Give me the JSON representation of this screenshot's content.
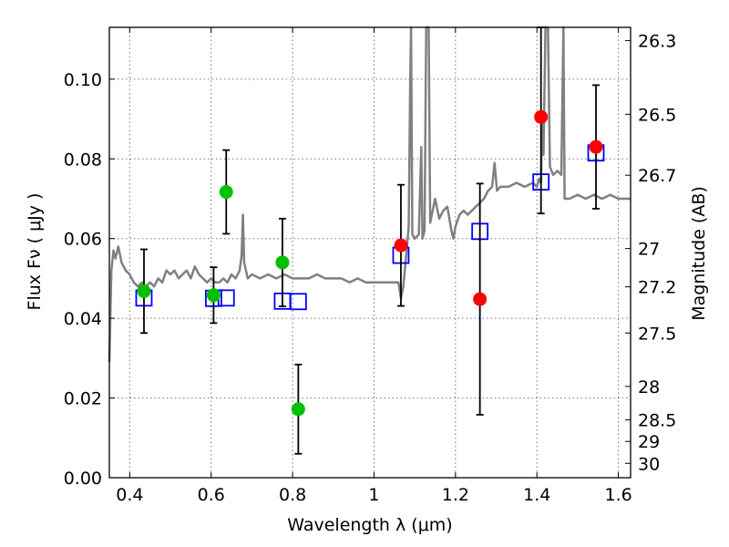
{
  "chart_data": {
    "type": "scatter",
    "xlabel": "Wavelength  λ (μm)",
    "ylabel": "Flux  Fν ( μJy )",
    "ylabel_right": "Magnitude (AB)",
    "xlim": [
      0.35,
      1.63
    ],
    "ylim": [
      0.0,
      0.113
    ],
    "grid": true,
    "x_ticks": [
      "0.4",
      "0.6",
      "0.8",
      "1",
      "1.2",
      "1.4",
      "1.6"
    ],
    "x_tick_values": [
      0.4,
      0.6,
      0.8,
      1.0,
      1.2,
      1.4,
      1.6
    ],
    "y_ticks": [
      "0.00",
      "0.02",
      "0.04",
      "0.06",
      "0.08",
      "0.10"
    ],
    "y_tick_values": [
      0.0,
      0.02,
      0.04,
      0.06,
      0.08,
      0.1
    ],
    "mag_ticks": [
      {
        "label": "26.3",
        "flux": 0.1097
      },
      {
        "label": "26.5",
        "flux": 0.0912
      },
      {
        "label": "26.7",
        "flux": 0.0759
      },
      {
        "label": "27",
        "flux": 0.0575
      },
      {
        "label": "27.2",
        "flux": 0.0479
      },
      {
        "label": "27.5",
        "flux": 0.0363
      },
      {
        "label": "28",
        "flux": 0.0229
      },
      {
        "label": "28.5",
        "flux": 0.0145
      },
      {
        "label": "29",
        "flux": 0.0091
      },
      {
        "label": "30",
        "flux": 0.0036
      }
    ],
    "series": [
      {
        "marker": "circle",
        "color": "#00c000",
        "points": [
          {
            "x": 0.435,
            "y": 0.0468,
            "err": 0.0105
          },
          {
            "x": 0.606,
            "y": 0.0458,
            "err": 0.007
          },
          {
            "x": 0.637,
            "y": 0.0717,
            "err": 0.0105
          },
          {
            "x": 0.775,
            "y": 0.054,
            "err": 0.011
          },
          {
            "x": 0.814,
            "y": 0.0172,
            "err": 0.0112
          }
        ]
      },
      {
        "marker": "circle",
        "color": "#ff0000",
        "points": [
          {
            "x": 1.066,
            "y": 0.0583,
            "err": 0.0152
          },
          {
            "x": 1.26,
            "y": 0.0448,
            "err": 0.029
          },
          {
            "x": 1.41,
            "y": 0.0905,
            "err": 0.0242
          },
          {
            "x": 1.545,
            "y": 0.083,
            "err": 0.0155
          }
        ]
      },
      {
        "marker": "square",
        "color": "#0000ff",
        "points": [
          {
            "x": 0.435,
            "y": 0.0451
          },
          {
            "x": 0.606,
            "y": 0.045
          },
          {
            "x": 0.637,
            "y": 0.0451
          },
          {
            "x": 0.775,
            "y": 0.0443
          },
          {
            "x": 0.814,
            "y": 0.0442
          },
          {
            "x": 1.066,
            "y": 0.0558
          },
          {
            "x": 1.26,
            "y": 0.0618
          },
          {
            "x": 1.41,
            "y": 0.0742
          },
          {
            "x": 1.545,
            "y": 0.0815
          }
        ]
      }
    ],
    "template": {
      "color": "#808080",
      "points": [
        [
          0.35,
          0.029
        ],
        [
          0.355,
          0.052
        ],
        [
          0.36,
          0.057
        ],
        [
          0.365,
          0.055
        ],
        [
          0.372,
          0.058
        ],
        [
          0.38,
          0.054
        ],
        [
          0.39,
          0.052
        ],
        [
          0.4,
          0.051
        ],
        [
          0.41,
          0.049
        ],
        [
          0.42,
          0.048
        ],
        [
          0.43,
          0.049
        ],
        [
          0.44,
          0.048
        ],
        [
          0.45,
          0.049
        ],
        [
          0.46,
          0.048
        ],
        [
          0.47,
          0.05
        ],
        [
          0.48,
          0.049
        ],
        [
          0.49,
          0.052
        ],
        [
          0.5,
          0.051
        ],
        [
          0.51,
          0.052
        ],
        [
          0.52,
          0.05
        ],
        [
          0.53,
          0.051
        ],
        [
          0.54,
          0.052
        ],
        [
          0.55,
          0.05
        ],
        [
          0.56,
          0.053
        ],
        [
          0.57,
          0.051
        ],
        [
          0.58,
          0.05
        ],
        [
          0.59,
          0.049
        ],
        [
          0.6,
          0.05
        ],
        [
          0.61,
          0.049
        ],
        [
          0.62,
          0.049
        ],
        [
          0.63,
          0.05
        ],
        [
          0.64,
          0.049
        ],
        [
          0.65,
          0.051
        ],
        [
          0.66,
          0.05
        ],
        [
          0.67,
          0.052
        ],
        [
          0.675,
          0.056
        ],
        [
          0.678,
          0.066
        ],
        [
          0.681,
          0.054
        ],
        [
          0.69,
          0.05
        ],
        [
          0.7,
          0.051
        ],
        [
          0.72,
          0.05
        ],
        [
          0.74,
          0.051
        ],
        [
          0.76,
          0.05
        ],
        [
          0.78,
          0.051
        ],
        [
          0.8,
          0.05
        ],
        [
          0.82,
          0.05
        ],
        [
          0.84,
          0.05
        ],
        [
          0.86,
          0.051
        ],
        [
          0.88,
          0.05
        ],
        [
          0.9,
          0.05
        ],
        [
          0.92,
          0.05
        ],
        [
          0.94,
          0.049
        ],
        [
          0.96,
          0.05
        ],
        [
          0.98,
          0.049
        ],
        [
          1.0,
          0.049
        ],
        [
          1.02,
          0.049
        ],
        [
          1.04,
          0.049
        ],
        [
          1.06,
          0.049
        ],
        [
          1.066,
          0.045
        ],
        [
          1.072,
          0.048
        ],
        [
          1.08,
          0.057
        ],
        [
          1.085,
          0.063
        ],
        [
          1.089,
          0.1
        ],
        [
          1.091,
          0.113
        ],
        [
          1.094,
          0.061
        ],
        [
          1.1,
          0.06
        ],
        [
          1.11,
          0.061
        ],
        [
          1.116,
          0.083
        ],
        [
          1.119,
          0.06
        ],
        [
          1.124,
          0.062
        ],
        [
          1.128,
          0.113
        ],
        [
          1.134,
          0.113
        ],
        [
          1.138,
          0.064
        ],
        [
          1.15,
          0.07
        ],
        [
          1.16,
          0.065
        ],
        [
          1.17,
          0.067
        ],
        [
          1.18,
          0.068
        ],
        [
          1.19,
          0.062
        ],
        [
          1.195,
          0.06
        ],
        [
          1.2,
          0.063
        ],
        [
          1.21,
          0.066
        ],
        [
          1.22,
          0.067
        ],
        [
          1.23,
          0.066
        ],
        [
          1.24,
          0.067
        ],
        [
          1.25,
          0.068
        ],
        [
          1.26,
          0.069
        ],
        [
          1.27,
          0.07
        ],
        [
          1.28,
          0.072
        ],
        [
          1.29,
          0.073
        ],
        [
          1.296,
          0.079
        ],
        [
          1.302,
          0.072
        ],
        [
          1.31,
          0.073
        ],
        [
          1.33,
          0.073
        ],
        [
          1.35,
          0.074
        ],
        [
          1.37,
          0.073
        ],
        [
          1.39,
          0.074
        ],
        [
          1.4,
          0.073
        ],
        [
          1.405,
          0.075
        ],
        [
          1.41,
          0.074
        ],
        [
          1.413,
          0.09
        ],
        [
          1.416,
          0.081
        ],
        [
          1.421,
          0.113
        ],
        [
          1.427,
          0.113
        ],
        [
          1.432,
          0.078
        ],
        [
          1.44,
          0.076
        ],
        [
          1.45,
          0.077
        ],
        [
          1.46,
          0.076
        ],
        [
          1.465,
          0.113
        ],
        [
          1.468,
          0.07
        ],
        [
          1.48,
          0.07
        ],
        [
          1.5,
          0.071
        ],
        [
          1.52,
          0.07
        ],
        [
          1.54,
          0.071
        ],
        [
          1.56,
          0.07
        ],
        [
          1.58,
          0.071
        ],
        [
          1.6,
          0.07
        ],
        [
          1.63,
          0.07
        ]
      ]
    }
  }
}
